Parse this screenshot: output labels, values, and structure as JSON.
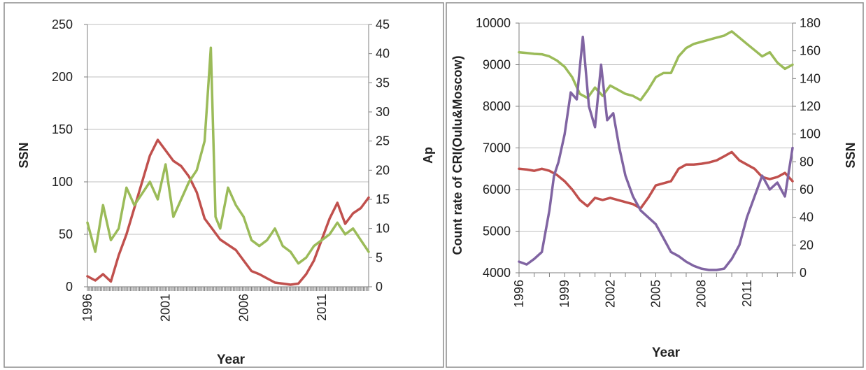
{
  "chart_data": [
    {
      "type": "line",
      "xlabel": "Year",
      "x_ticks": [
        "1996",
        "2001",
        "2006",
        "2011"
      ],
      "x_range": [
        1996,
        2014
      ],
      "y_left": {
        "label": "SSN",
        "range": [
          0,
          250
        ],
        "ticks": [
          0,
          50,
          100,
          150,
          200,
          250
        ]
      },
      "y_right": {
        "label": "Ap",
        "range": [
          0,
          45
        ],
        "ticks": [
          0,
          5,
          10,
          15,
          20,
          25,
          30,
          35,
          40,
          45
        ]
      },
      "grid": true,
      "series": [
        {
          "color": "#c0504d",
          "axis": "left",
          "x": [
            1996.0,
            1996.5,
            1997.0,
            1997.5,
            1998.0,
            1998.5,
            1999.0,
            1999.5,
            2000.0,
            2000.5,
            2001.0,
            2001.5,
            2002.0,
            2002.5,
            2003.0,
            2003.5,
            2004.0,
            2004.5,
            2005.0,
            2005.5,
            2006.0,
            2006.5,
            2007.0,
            2007.5,
            2008.0,
            2008.5,
            2009.0,
            2009.5,
            2010.0,
            2010.5,
            2011.0,
            2011.5,
            2012.0,
            2012.5,
            2013.0,
            2013.5,
            2014.0
          ],
          "values": [
            10,
            6,
            12,
            5,
            30,
            50,
            75,
            100,
            125,
            140,
            130,
            120,
            115,
            105,
            90,
            65,
            55,
            45,
            40,
            35,
            25,
            15,
            12,
            8,
            4,
            3,
            2,
            3,
            12,
            25,
            45,
            65,
            80,
            60,
            70,
            75,
            85
          ]
        },
        {
          "color": "#9bbb59",
          "axis": "right",
          "x": [
            1996.0,
            1996.5,
            1997.0,
            1997.5,
            1998.0,
            1998.5,
            1999.0,
            1999.5,
            2000.0,
            2000.5,
            2001.0,
            2001.5,
            2002.0,
            2002.5,
            2003.0,
            2003.5,
            2003.9,
            2004.2,
            2004.5,
            2005.0,
            2005.5,
            2006.0,
            2006.5,
            2007.0,
            2007.5,
            2008.0,
            2008.5,
            2009.0,
            2009.5,
            2010.0,
            2010.5,
            2011.0,
            2011.5,
            2012.0,
            2012.5,
            2013.0,
            2013.5,
            2014.0
          ],
          "values": [
            11,
            6,
            14,
            8,
            10,
            17,
            14,
            16,
            18,
            15,
            21,
            12,
            15,
            18,
            20,
            25,
            41,
            12,
            10,
            17,
            14,
            12,
            8,
            7,
            8,
            10,
            7,
            6,
            4,
            5,
            7,
            8,
            9,
            11,
            9,
            10,
            8,
            6
          ]
        }
      ]
    },
    {
      "type": "line",
      "xlabel": "Year",
      "x_ticks": [
        "1996",
        "1999",
        "2002",
        "2005",
        "2008",
        "2011"
      ],
      "x_range": [
        1996,
        2014
      ],
      "y_left": {
        "label": "Count rate of CRI(Oulu&Moscow)",
        "range": [
          4000,
          10000
        ],
        "ticks": [
          4000,
          5000,
          6000,
          7000,
          8000,
          9000,
          10000
        ]
      },
      "y_right": {
        "label": "SSN",
        "range": [
          0,
          180
        ],
        "ticks": [
          0,
          20,
          40,
          60,
          80,
          100,
          120,
          140,
          160,
          180
        ]
      },
      "grid": true,
      "series": [
        {
          "color": "#9bbb59",
          "axis": "left",
          "x": [
            1996.0,
            1996.5,
            1997.0,
            1997.5,
            1998.0,
            1998.5,
            1999.0,
            1999.5,
            2000.0,
            2000.5,
            2001.0,
            2001.5,
            2002.0,
            2002.5,
            2003.0,
            2003.5,
            2004.0,
            2004.5,
            2005.0,
            2005.5,
            2006.0,
            2006.5,
            2007.0,
            2007.5,
            2008.0,
            2008.5,
            2009.0,
            2009.5,
            2010.0,
            2010.5,
            2011.0,
            2011.5,
            2012.0,
            2012.5,
            2013.0,
            2013.5,
            2014.0
          ],
          "values": [
            9300,
            9280,
            9260,
            9250,
            9200,
            9100,
            8950,
            8700,
            8300,
            8200,
            8450,
            8250,
            8500,
            8400,
            8300,
            8250,
            8150,
            8400,
            8700,
            8800,
            8800,
            9200,
            9400,
            9500,
            9550,
            9600,
            9650,
            9700,
            9800,
            9650,
            9500,
            9350,
            9200,
            9300,
            9050,
            8900,
            9000
          ]
        },
        {
          "color": "#c0504d",
          "axis": "left",
          "x": [
            1996.0,
            1996.5,
            1997.0,
            1997.5,
            1998.0,
            1998.5,
            1999.0,
            1999.5,
            2000.0,
            2000.5,
            2001.0,
            2001.5,
            2002.0,
            2002.5,
            2003.0,
            2003.5,
            2004.0,
            2004.5,
            2005.0,
            2005.5,
            2006.0,
            2006.5,
            2007.0,
            2007.5,
            2008.0,
            2008.5,
            2009.0,
            2009.5,
            2010.0,
            2010.5,
            2011.0,
            2011.5,
            2012.0,
            2012.5,
            2013.0,
            2013.5,
            2014.0
          ],
          "values": [
            6500,
            6480,
            6450,
            6500,
            6450,
            6350,
            6200,
            6000,
            5750,
            5600,
            5800,
            5750,
            5800,
            5750,
            5700,
            5650,
            5550,
            5800,
            6100,
            6150,
            6200,
            6500,
            6600,
            6600,
            6620,
            6650,
            6700,
            6800,
            6900,
            6700,
            6600,
            6500,
            6300,
            6250,
            6300,
            6400,
            6200
          ]
        },
        {
          "color": "#8064a2",
          "axis": "right",
          "x": [
            1996.0,
            1996.5,
            1997.0,
            1997.5,
            1998.0,
            1998.3,
            1998.6,
            1999.0,
            1999.4,
            1999.8,
            2000.2,
            2000.6,
            2001.0,
            2001.4,
            2001.8,
            2002.2,
            2002.6,
            2003.0,
            2003.5,
            2004.0,
            2004.5,
            2005.0,
            2005.5,
            2006.0,
            2006.5,
            2007.0,
            2007.5,
            2008.0,
            2008.5,
            2009.0,
            2009.5,
            2010.0,
            2010.5,
            2011.0,
            2011.5,
            2012.0,
            2012.5,
            2013.0,
            2013.5,
            2014.0
          ],
          "values": [
            8,
            6,
            10,
            15,
            45,
            70,
            80,
            100,
            130,
            125,
            170,
            120,
            105,
            150,
            110,
            115,
            90,
            70,
            55,
            45,
            40,
            35,
            25,
            15,
            12,
            8,
            5,
            3,
            2,
            2,
            3,
            10,
            20,
            40,
            55,
            70,
            60,
            65,
            55,
            90
          ]
        }
      ]
    }
  ]
}
